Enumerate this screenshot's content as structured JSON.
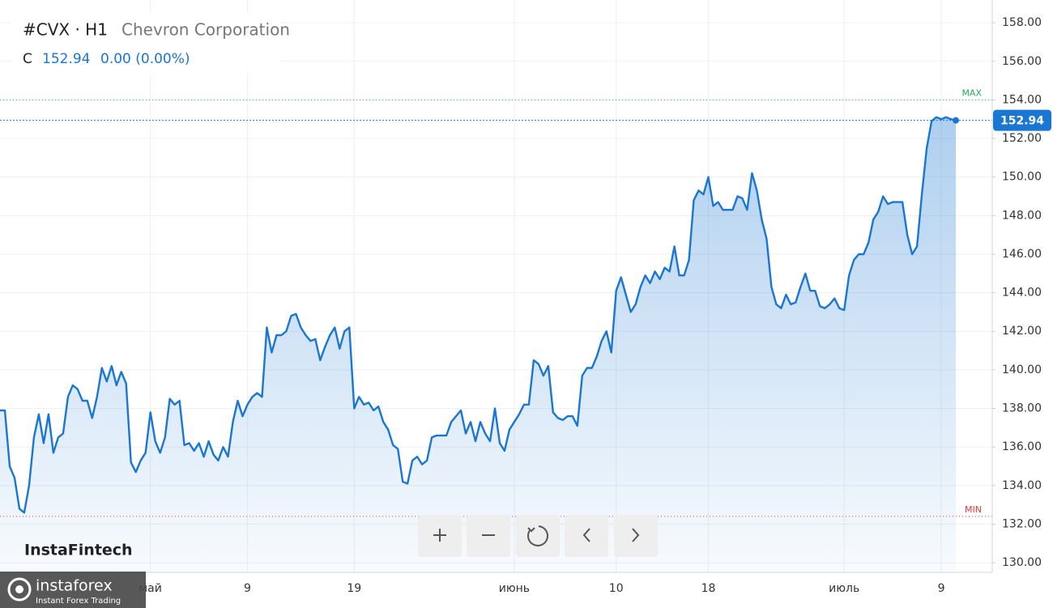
{
  "header": {
    "symbol": "#CVX · H1",
    "name": "Chevron Corporation",
    "ohlc_label": "C",
    "close": 152.94,
    "change": "0.00 (0.00%)",
    "watermark": "InstaFintech",
    "logo": "instaforex",
    "logo_tagline": "Instant Forex Trading"
  },
  "chart_data": {
    "type": "area",
    "color": "#1976d2",
    "grid": true,
    "values": [
      137.9,
      137.9,
      135.0,
      134.4,
      132.8,
      132.6,
      134.0,
      136.5,
      137.7,
      136.2,
      137.7,
      135.7,
      136.5,
      136.7,
      138.6,
      139.2,
      139.0,
      138.4,
      138.4,
      137.5,
      138.6,
      140.1,
      139.4,
      140.2,
      139.2,
      139.9,
      139.3,
      135.2,
      134.7,
      135.3,
      135.7,
      137.8,
      136.3,
      135.7,
      136.5,
      138.5,
      138.2,
      138.4,
      136.1,
      136.2,
      135.8,
      136.2,
      135.5,
      136.3,
      135.6,
      135.3,
      136.0,
      135.5,
      137.3,
      138.4,
      137.6,
      138.2,
      138.6,
      138.8,
      138.6,
      142.2,
      140.9,
      141.8,
      141.8,
      142.0,
      142.8,
      142.9,
      142.2,
      141.8,
      141.5,
      141.6,
      140.5,
      141.2,
      141.8,
      142.2,
      141.1,
      142.0,
      142.2,
      138.0,
      138.6,
      138.2,
      138.3,
      137.9,
      138.1,
      137.3,
      136.9,
      136.1,
      135.9,
      134.2,
      134.1,
      135.3,
      135.5,
      135.1,
      135.3,
      136.5,
      136.6,
      136.6,
      136.6,
      137.3,
      137.6,
      137.9,
      136.7,
      137.3,
      136.3,
      137.3,
      136.7,
      136.3,
      138.0,
      136.2,
      135.8,
      136.9,
      137.3,
      137.7,
      138.2,
      138.2,
      140.5,
      140.3,
      139.7,
      140.2,
      137.8,
      137.5,
      137.4,
      137.6,
      137.6,
      137.1,
      139.7,
      140.1,
      140.1,
      140.7,
      141.5,
      142.0,
      140.9,
      144.1,
      144.8,
      143.9,
      143.0,
      143.4,
      144.3,
      144.9,
      144.5,
      145.1,
      144.7,
      145.3,
      145.1,
      146.4,
      144.9,
      144.9,
      145.7,
      148.8,
      149.3,
      149.1,
      150.0,
      148.5,
      148.7,
      148.3,
      148.3,
      148.3,
      149.0,
      148.9,
      148.3,
      150.2,
      149.3,
      147.8,
      146.8,
      144.3,
      143.4,
      143.2,
      143.9,
      143.4,
      143.5,
      144.3,
      145.0,
      144.1,
      144.1,
      143.3,
      143.2,
      143.4,
      143.7,
      143.2,
      143.1,
      144.9,
      145.7,
      146.0,
      146.0,
      146.6,
      147.8,
      148.2,
      149.0,
      148.6,
      148.7,
      148.7,
      148.7,
      147.0,
      146.0,
      146.4,
      149.1,
      151.5,
      152.9,
      153.1,
      153.0,
      153.1,
      153.0,
      152.94
    ],
    "xlim": [
      0,
      197
    ],
    "xticks": [
      {
        "value": 31,
        "label": "май"
      },
      {
        "value": 51,
        "label": "9"
      },
      {
        "value": 73,
        "label": "19"
      },
      {
        "value": 106,
        "label": "июнь"
      },
      {
        "value": 127,
        "label": "10"
      },
      {
        "value": 146,
        "label": "18"
      },
      {
        "value": 174,
        "label": "июль"
      },
      {
        "value": 194,
        "label": "9"
      }
    ],
    "ylim": [
      129.5,
      159.18
    ],
    "yticks": [
      {
        "value": 130,
        "label": "130.00"
      },
      {
        "value": 132,
        "label": "132.00"
      },
      {
        "value": 134,
        "label": "134.00"
      },
      {
        "value": 136,
        "label": "136.00"
      },
      {
        "value": 138,
        "label": "138.00"
      },
      {
        "value": 140,
        "label": "140.00"
      },
      {
        "value": 142,
        "label": "142.00"
      },
      {
        "value": 144,
        "label": "144.00"
      },
      {
        "value": 146,
        "label": "146.00"
      },
      {
        "value": 148,
        "label": "148.00"
      },
      {
        "value": 150,
        "label": "150.00"
      },
      {
        "value": 152,
        "label": "152.00"
      },
      {
        "value": 154,
        "label": "154.00"
      },
      {
        "value": 156,
        "label": "156.00"
      },
      {
        "value": 158,
        "label": "158.00"
      }
    ],
    "max_level": {
      "label": "MAX",
      "value": 154.0,
      "color": "#26a65b"
    },
    "min_level": {
      "label": "MIN",
      "value": 132.4,
      "color": "#e53935"
    }
  }
}
